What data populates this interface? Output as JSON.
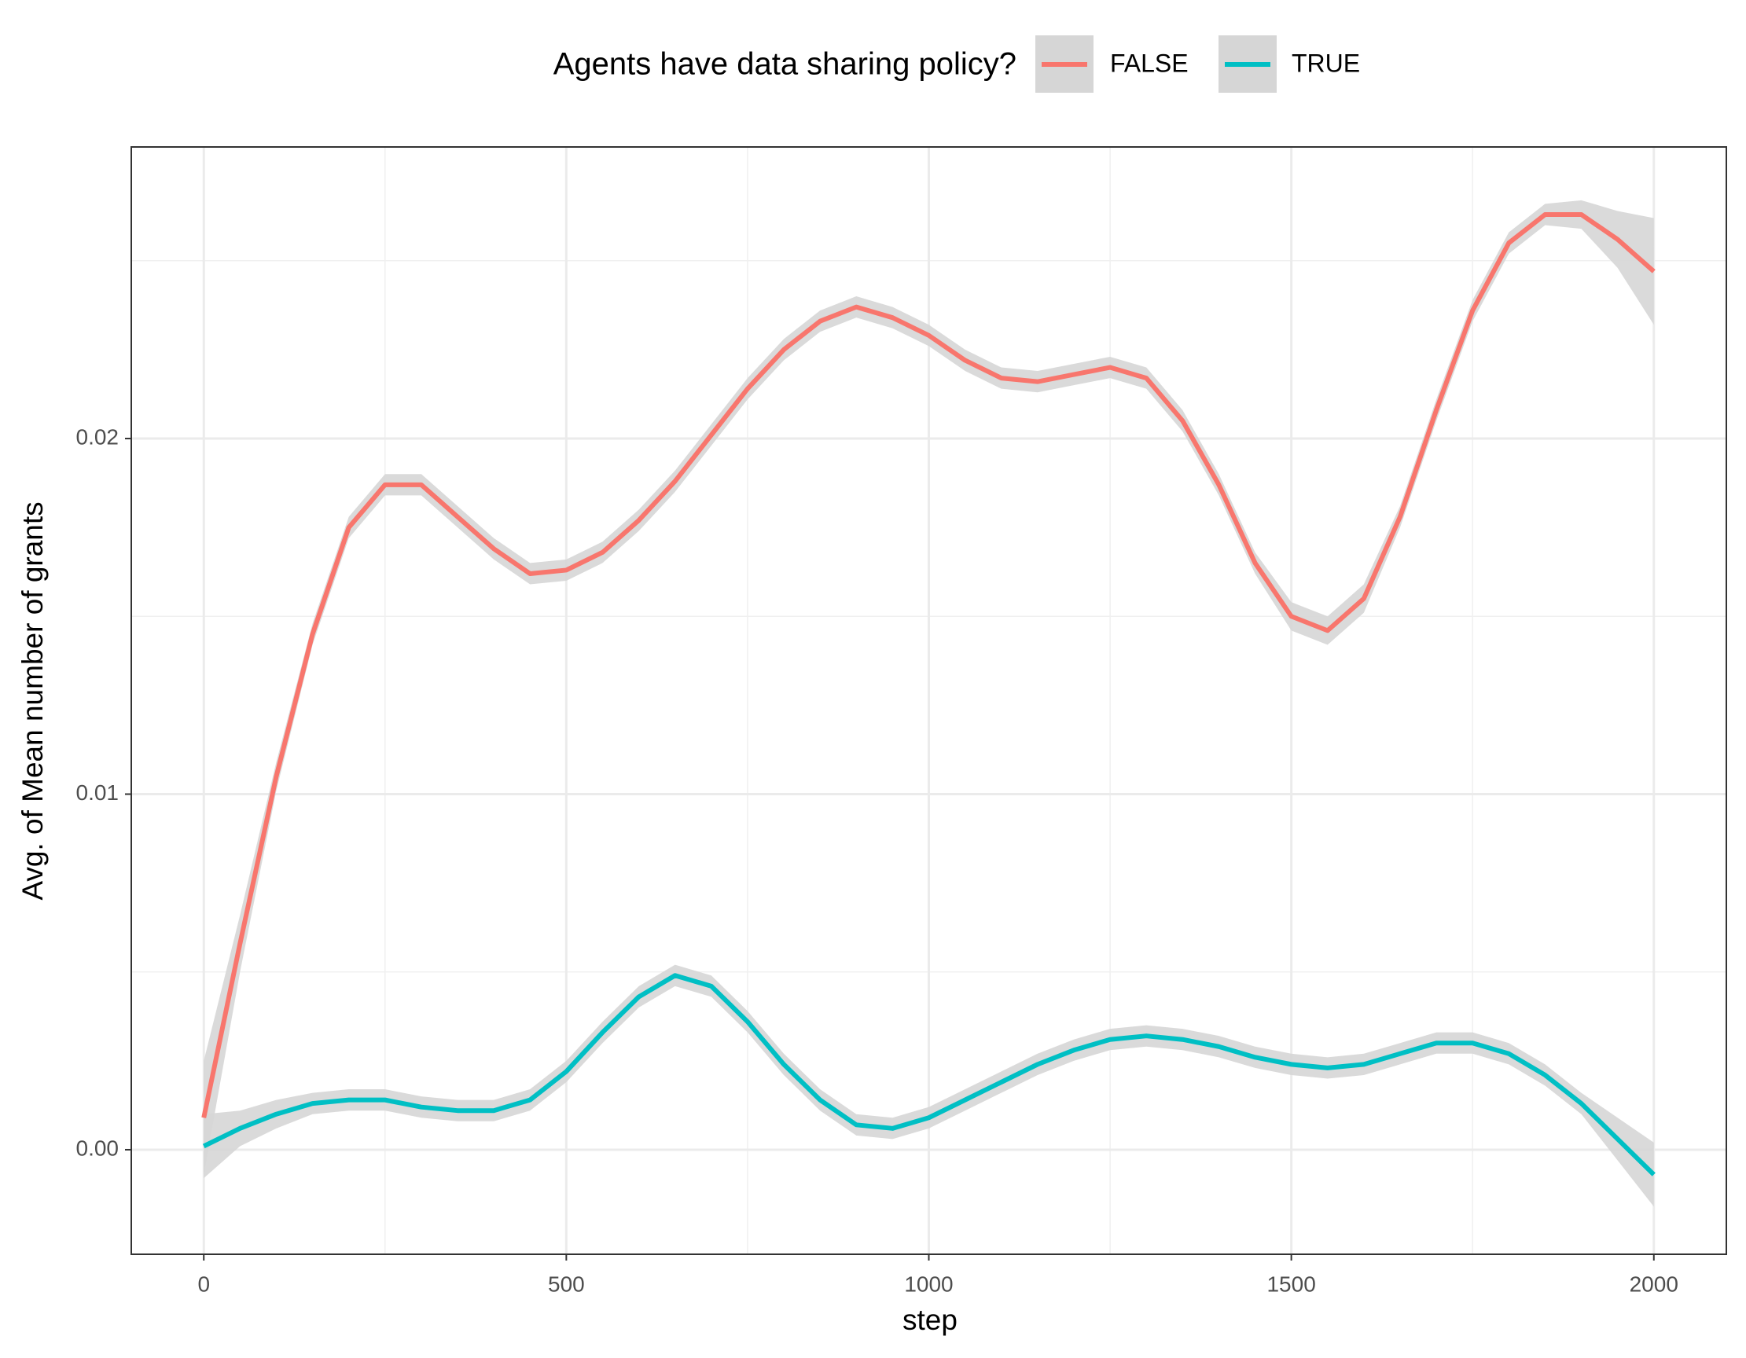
{
  "chart_data": {
    "type": "line",
    "legend_title": "Agents have data sharing policy?",
    "legend": "top",
    "x_label": "step",
    "y_label": "Avg. of Mean number of grants",
    "x": [
      0,
      50,
      100,
      150,
      200,
      250,
      300,
      350,
      400,
      450,
      500,
      550,
      600,
      650,
      700,
      750,
      800,
      850,
      900,
      950,
      1000,
      1050,
      1100,
      1150,
      1200,
      1250,
      1300,
      1350,
      1400,
      1450,
      1500,
      1550,
      1600,
      1650,
      1700,
      1750,
      1800,
      1850,
      1900,
      1950,
      2000
    ],
    "series": [
      {
        "name": "FALSE",
        "color": "#F8766D",
        "values": [
          0.0009,
          0.0058,
          0.0105,
          0.0145,
          0.0175,
          0.0187,
          0.0187,
          0.0178,
          0.0169,
          0.0162,
          0.0163,
          0.0168,
          0.0177,
          0.0188,
          0.0201,
          0.0214,
          0.0225,
          0.0233,
          0.0237,
          0.0234,
          0.0229,
          0.0222,
          0.0217,
          0.0216,
          0.0218,
          0.022,
          0.0217,
          0.0205,
          0.0187,
          0.0165,
          0.015,
          0.0146,
          0.0155,
          0.0178,
          0.0208,
          0.0236,
          0.0255,
          0.0263,
          0.0263,
          0.0256,
          0.0247
        ],
        "errors": [
          0.0016,
          0.0008,
          0.0004,
          0.0003,
          0.0003,
          0.0003,
          0.0003,
          0.0003,
          0.0003,
          0.0003,
          0.0003,
          0.0003,
          0.0003,
          0.0003,
          0.0003,
          0.0003,
          0.0003,
          0.0003,
          0.0003,
          0.0003,
          0.0003,
          0.0003,
          0.0003,
          0.0003,
          0.0003,
          0.0003,
          0.0003,
          0.0003,
          0.0003,
          0.0003,
          0.0004,
          0.0004,
          0.0004,
          0.0003,
          0.0003,
          0.0003,
          0.0003,
          0.0003,
          0.0004,
          0.0008,
          0.0015
        ]
      },
      {
        "name": "TRUE",
        "color": "#00BFC4",
        "values": [
          0.0001,
          0.0006,
          0.001,
          0.0013,
          0.0014,
          0.0014,
          0.0012,
          0.0011,
          0.0011,
          0.0014,
          0.0022,
          0.0033,
          0.0043,
          0.0049,
          0.0046,
          0.0036,
          0.0024,
          0.0014,
          0.0007,
          0.0006,
          0.0009,
          0.0014,
          0.0019,
          0.0024,
          0.0028,
          0.0031,
          0.0032,
          0.0031,
          0.0029,
          0.0026,
          0.0024,
          0.0023,
          0.0024,
          0.0027,
          0.003,
          0.003,
          0.0027,
          0.0021,
          0.0013,
          0.0003,
          -0.0007
        ],
        "errors": [
          0.0009,
          0.0005,
          0.0004,
          0.0003,
          0.0003,
          0.0003,
          0.0003,
          0.0003,
          0.0003,
          0.0003,
          0.0003,
          0.0003,
          0.0003,
          0.0003,
          0.0003,
          0.0003,
          0.0003,
          0.0003,
          0.0003,
          0.0003,
          0.0003,
          0.0003,
          0.0003,
          0.0003,
          0.0003,
          0.0003,
          0.0003,
          0.0003,
          0.0003,
          0.0003,
          0.0003,
          0.0003,
          0.0003,
          0.0003,
          0.0003,
          0.0003,
          0.0003,
          0.0003,
          0.0003,
          0.0006,
          0.0009
        ]
      }
    ],
    "band_color": "#d6d6d6",
    "xlim": [
      -100,
      2100
    ],
    "xticks": [
      0,
      500,
      1000,
      1500,
      2000
    ],
    "xminor": [
      250,
      750,
      1250,
      1750
    ],
    "ylim": [
      -0.00294,
      0.0282
    ],
    "yticks": [
      {
        "value": 0,
        "label": "0.00"
      },
      0.01,
      0.02
    ],
    "yminor": [
      0.005,
      0.015,
      0.025
    ],
    "grid": true
  }
}
